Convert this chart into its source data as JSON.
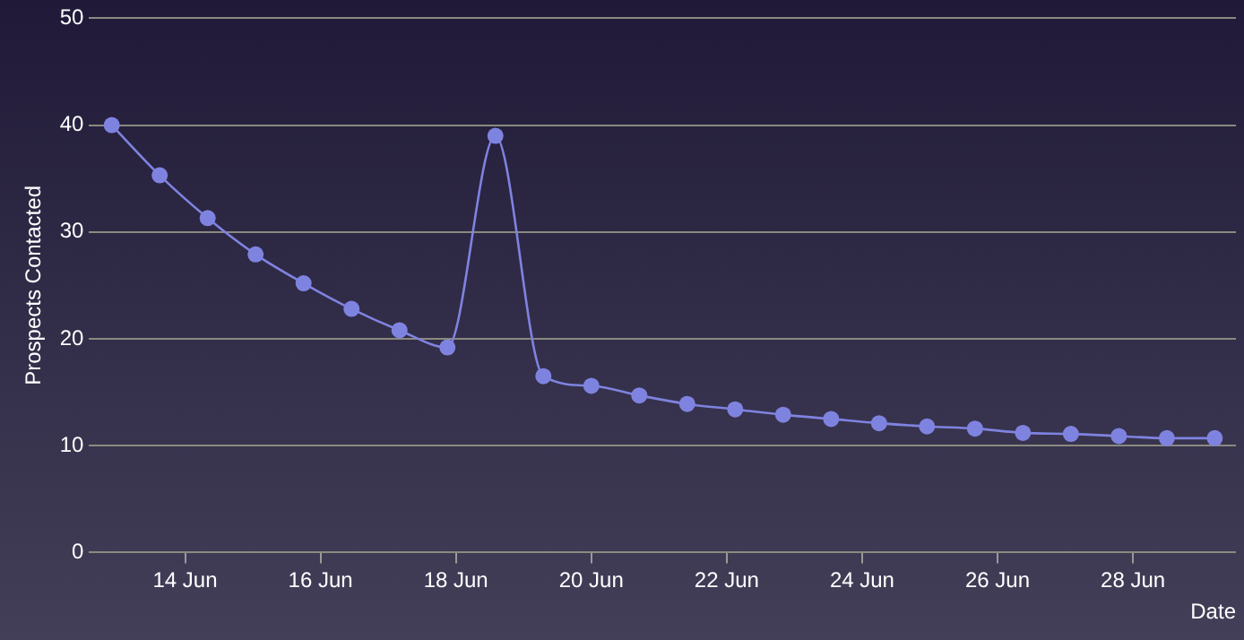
{
  "chart_data": {
    "type": "line",
    "xlabel": "Date",
    "ylabel": "Prospects Contacted",
    "x": [
      "--06-12T22:00",
      "--06-13T15:00",
      "--06-14T08:00",
      "--06-15T01:00",
      "--06-15T18:00",
      "--06-16T11:00",
      "--06-17T04:00",
      "--06-17T21:00",
      "--06-18T14:00",
      "--06-19T07:00",
      "--06-20T00:00",
      "--06-20T17:00",
      "--06-21T10:00",
      "--06-22T03:00",
      "--06-22T20:00",
      "--06-23T13:00",
      "--06-24T06:00",
      "--06-24T23:00",
      "--06-25T16:00",
      "--06-26T09:00",
      "--06-27T02:00",
      "--06-27T19:00",
      "--06-28T12:00",
      "--06-29T05:00"
    ],
    "series": [
      {
        "color": "#7f83e0",
        "values": [
          40,
          35.3,
          31.3,
          27.9,
          25.2,
          22.8,
          20.8,
          19.2,
          39,
          16.5,
          15.6,
          14.7,
          13.9,
          13.4,
          12.9,
          12.5,
          12.1,
          11.8,
          11.6,
          11.2,
          11.1,
          10.9,
          10.7,
          10.7
        ]
      }
    ],
    "xlim": [
      "--06-12T14:00",
      "--06-29T12:30"
    ],
    "xticks": [
      {
        "value": "--06-14",
        "label": "14 Jun"
      },
      {
        "value": "--06-16",
        "label": "16 Jun"
      },
      {
        "value": "--06-18",
        "label": "18 Jun"
      },
      {
        "value": "--06-20",
        "label": "20 Jun"
      },
      {
        "value": "--06-22",
        "label": "22 Jun"
      },
      {
        "value": "--06-24",
        "label": "24 Jun"
      },
      {
        "value": "--06-26",
        "label": "26 Jun"
      },
      {
        "value": "--06-28",
        "label": "28 Jun"
      }
    ],
    "ylim": [
      0,
      50
    ],
    "yticks": [
      0,
      10,
      20,
      30,
      40,
      50
    ],
    "grid": "y",
    "legend": false,
    "marker": "circle",
    "line_style": "solid"
  }
}
